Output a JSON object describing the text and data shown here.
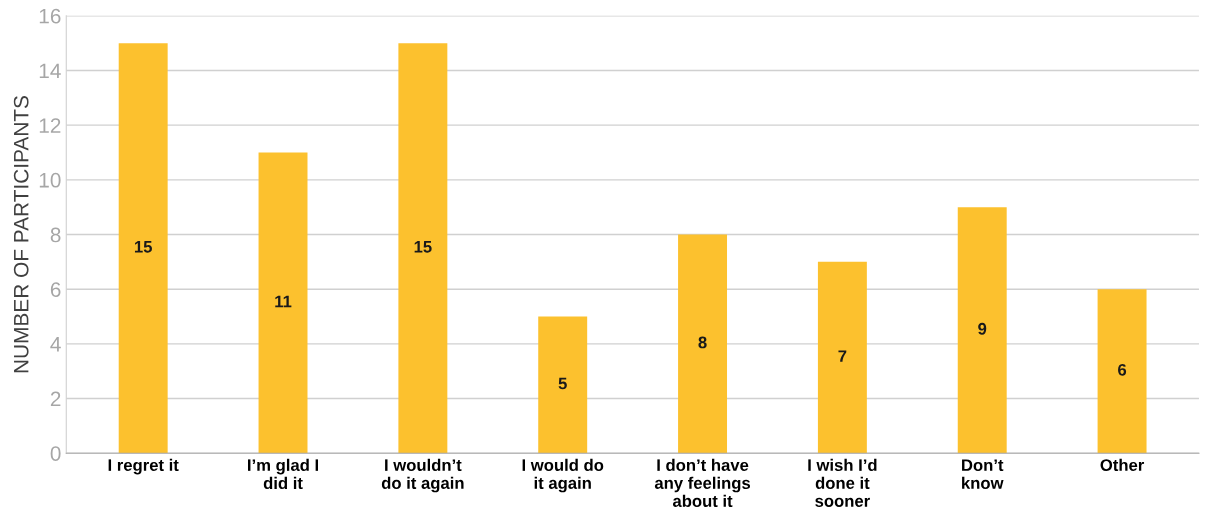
{
  "chart_data": {
    "type": "bar",
    "ylabel": "NUMBER OF PARTICIPANTS",
    "categories": [
      "I regret it",
      "I’m glad I\ndid it",
      "I wouldn’t\ndo it again",
      "I would do\nit again",
      "I don’t have\nany feelings\nabout it",
      "I wish I’d\ndone it\nsooner",
      "Don’t\nknow",
      "Other"
    ],
    "values": [
      15,
      11,
      15,
      5,
      8,
      7,
      9,
      6
    ],
    "color": "#fcc12e",
    "ylim": [
      0,
      16
    ],
    "yticks": [
      0,
      2,
      4,
      6,
      8,
      10,
      12,
      14,
      16
    ],
    "grid": "y",
    "data_labels": true,
    "legend": false
  }
}
